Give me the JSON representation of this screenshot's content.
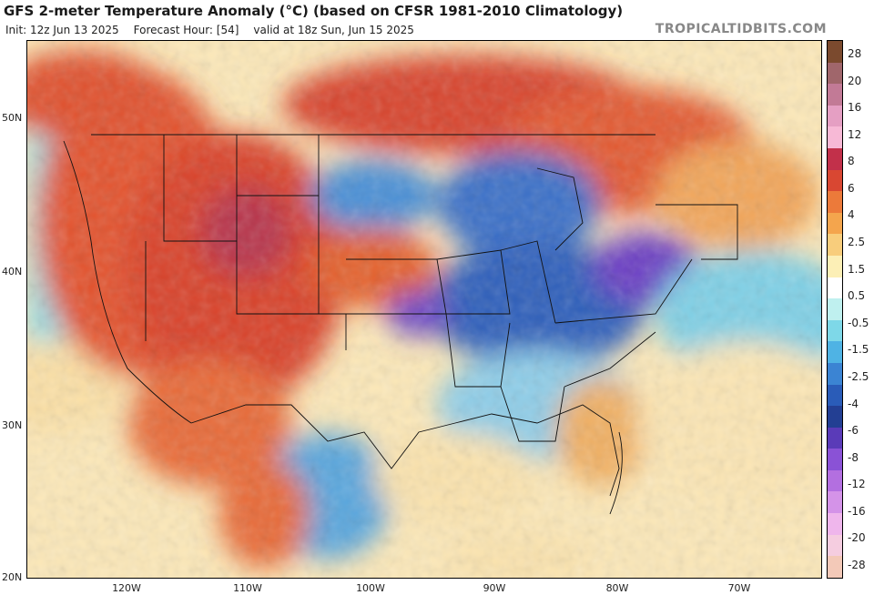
{
  "header": {
    "title": "GFS 2-meter Temperature Anomaly (°C) (based on CFSR 1981-2010 Climatology)",
    "init": "Init: 12z Jun 13 2025",
    "forecast_hour": "Forecast Hour: [54]",
    "valid": "valid at 18z Sun, Jun 15 2025",
    "brand": "TROPICALTIDBITS.COM"
  },
  "map": {
    "lat_labels": [
      "50N",
      "40N",
      "30N",
      "20N"
    ],
    "lon_labels": [
      "120W",
      "110W",
      "100W",
      "90W",
      "80W",
      "70W"
    ]
  },
  "colorbar": {
    "labels": [
      "28",
      "20",
      "16",
      "12",
      "8",
      "6",
      "4",
      "2.5",
      "1.5",
      "0.5",
      "-0.5",
      "-1.5",
      "-2.5",
      "-4",
      "-6",
      "-8",
      "-12",
      "-16",
      "-20",
      "-28"
    ],
    "colors": [
      "#7b4a2e",
      "#a0666b",
      "#c27a96",
      "#e59fc3",
      "#f7b9d6",
      "#c2304a",
      "#d94732",
      "#ec7a3a",
      "#f4a54d",
      "#f8cd7c",
      "#fcefb6",
      "#ffffff",
      "#bff0ef",
      "#7ed8e8",
      "#4fb3e4",
      "#3b84d3",
      "#2a5cb8",
      "#233f93",
      "#5a3bb8",
      "#8a52d6",
      "#b36fe0",
      "#d493e8",
      "#efb6ec",
      "#f5cde0",
      "#f3c9b8"
    ]
  }
}
